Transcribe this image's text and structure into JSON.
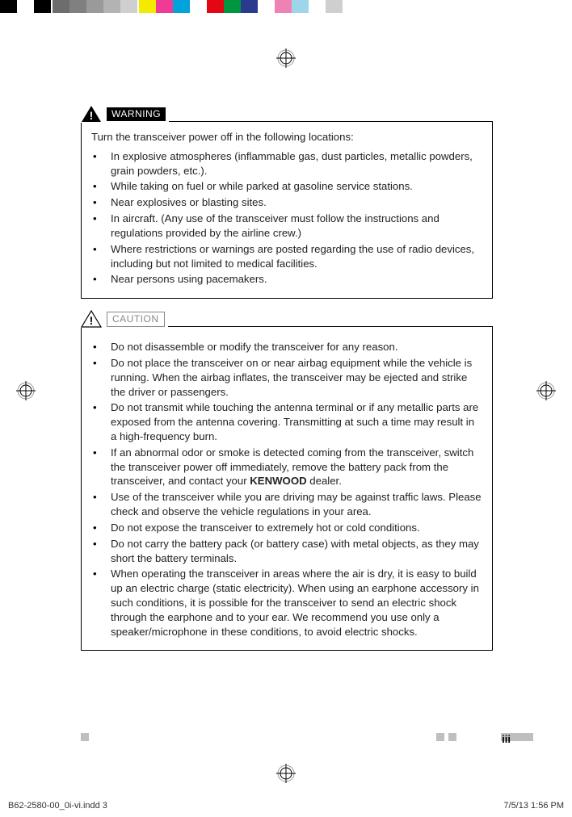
{
  "colorbar": {
    "widths": [
      21,
      21,
      21,
      2,
      21,
      21,
      21,
      21,
      21,
      2,
      21,
      21,
      21,
      21,
      21,
      21,
      21,
      21,
      21,
      21,
      21,
      21
    ],
    "colors": [
      "#000000",
      "#ffffff",
      "#000000",
      "#ffffff",
      "#6d6d6d",
      "#808080",
      "#9a9a9a",
      "#b3b3b3",
      "#cfcfcf",
      "#ffffff",
      "#f4ea00",
      "#ef3b96",
      "#00a3da",
      "#ffffff",
      "#e30613",
      "#009640",
      "#2a3a8f",
      "#ffffff",
      "#ee82b4",
      "#9dd6e9",
      "#ffffff",
      "#cfcfcf"
    ]
  },
  "warning": {
    "label": "WARNING",
    "intro": "Turn the transceiver power off in the following locations:",
    "items": [
      "In explosive atmospheres (inflammable gas, dust particles, metallic powders, grain powders, etc.).",
      "While taking on fuel or while parked at gasoline service stations.",
      "Near explosives or blasting sites.",
      "In aircraft. (Any use of the transceiver must follow the instructions and regulations provided by the airline crew.)",
      "Where restrictions or warnings are posted regarding the use of radio devices, including but not limited to medical facilities.",
      "Near persons using pacemakers."
    ]
  },
  "caution": {
    "label": "CAUTION",
    "items": [
      "Do not disassemble or modify the transceiver for any reason.",
      "Do not place the transceiver on or near airbag equipment while the vehicle is running. When the airbag inflates, the transceiver may be ejected and strike the driver or passengers.",
      "Do not transmit while touching the antenna terminal or if any metallic parts are exposed from the antenna covering. Transmitting at such a time may result in a high-frequency burn.",
      "If an abnormal odor or smoke is detected coming from the transceiver, switch the transceiver power off immediately, remove the battery pack from the transceiver, and contact your <span class=\"bold\">KENWOOD</span> dealer.",
      "Use of the transceiver while you are driving may be against traffic laws. Please check and observe the vehicle regulations in your area.",
      "Do not expose the transceiver to extremely hot or cold conditions.",
      "Do not carry the battery pack (or battery case) with metal objects, as they may short the battery terminals.",
      "When operating the transceiver in areas where the air is dry, it is easy to build up an electric charge (static electricity). When using an earphone accessory in such conditions, it is possible for the transceiver to send an electric shock through the earphone and to your ear. We recommend you use only a speaker/microphone in these conditions, to avoid electric shocks."
    ]
  },
  "page_number": "iii",
  "footer": {
    "left": "B62-2580-00_0i-vi.indd   3",
    "right": "7/5/13   1:56 PM"
  }
}
